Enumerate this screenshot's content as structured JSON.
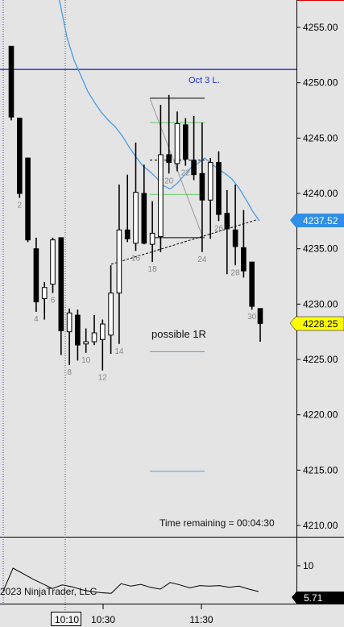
{
  "colors": {
    "background": "#e4e4e4",
    "up_candle": "#ffffff",
    "down_candle": "#000000",
    "ma_line": "#4a9be8",
    "oct3_line": "#1f2fd6",
    "price_badge_blue": "#2f8ee8",
    "price_badge_yellow": "#ffff00",
    "target_line": "#4a9be8",
    "green_line": "#66cc66",
    "bar_label": "#888888"
  },
  "annotations": {
    "oct3_label": "Oct 3 L.",
    "possible_label": "possible 1R",
    "time_remaining": "Time remaining = 00:04:30",
    "copyright": "2023 NinjaTrader, LLC",
    "cursor_time": "10:10"
  },
  "badges": {
    "ma_value": "4237.52",
    "last_price": "4228.25",
    "indicator_value": "5.71"
  },
  "indicator": {
    "tick_label": "10",
    "values": [
      5.8,
      9.6,
      8.7,
      7.8,
      7.0,
      6.2,
      6.8,
      6.5,
      6.0,
      5.7,
      5.5,
      5.4,
      7.0,
      6.6,
      6.9,
      6.4,
      6.1,
      7.2,
      6.8,
      6.3,
      6.7,
      6.6,
      6.7,
      6.4,
      6.6,
      6.1,
      5.7
    ]
  },
  "chart_data": {
    "type": "candlestick",
    "title": "",
    "ylim": [
      4208.0,
      4258.0
    ],
    "y_ticks": [
      "4255.00",
      "4250.00",
      "4245.00",
      "4240.00",
      "4235.00",
      "4230.00",
      "4225.00",
      "4220.00",
      "4215.00",
      "4210.00"
    ],
    "x_ticks": [
      "10:30",
      "11:30"
    ],
    "oct3_level": 4251.2,
    "candles": [
      {
        "o": 4253.3,
        "h": 4253.3,
        "l": 4246.6,
        "c": 4246.9,
        "label": ""
      },
      {
        "o": 4246.8,
        "h": 4246.8,
        "l": 4239.6,
        "c": 4240.0,
        "label": "2"
      },
      {
        "o": 4243.2,
        "h": 4243.2,
        "l": 4235.6,
        "c": 4235.8,
        "label": ""
      },
      {
        "o": 4235.0,
        "h": 4236.0,
        "l": 4229.3,
        "c": 4230.2,
        "label": "4"
      },
      {
        "o": 4230.5,
        "h": 4232.0,
        "l": 4228.6,
        "c": 4231.5,
        "label": ""
      },
      {
        "o": 4231.8,
        "h": 4236.0,
        "l": 4231.0,
        "c": 4235.8,
        "label": "6"
      },
      {
        "o": 4236.0,
        "h": 4236.0,
        "l": 4225.4,
        "c": 4227.6,
        "label": ""
      },
      {
        "o": 4227.5,
        "h": 4229.6,
        "l": 4224.5,
        "c": 4229.2,
        "label": "8"
      },
      {
        "o": 4229.0,
        "h": 4229.5,
        "l": 4224.9,
        "c": 4226.3,
        "label": ""
      },
      {
        "o": 4226.4,
        "h": 4227.8,
        "l": 4225.6,
        "c": 4226.6,
        "label": "10"
      },
      {
        "o": 4226.6,
        "h": 4229.0,
        "l": 4226.3,
        "c": 4227.4,
        "label": ""
      },
      {
        "o": 4226.8,
        "h": 4228.6,
        "l": 4224.0,
        "c": 4228.2,
        "label": "12"
      },
      {
        "o": 4227.2,
        "h": 4233.5,
        "l": 4225.5,
        "c": 4231.0,
        "label": ""
      },
      {
        "o": 4231.0,
        "h": 4240.8,
        "l": 4226.4,
        "c": 4236.7,
        "label": "14"
      },
      {
        "o": 4236.7,
        "h": 4241.7,
        "l": 4235.6,
        "c": 4235.9,
        "label": ""
      },
      {
        "o": 4235.5,
        "h": 4244.6,
        "l": 4234.8,
        "c": 4240.1,
        "label": "16"
      },
      {
        "o": 4240.0,
        "h": 4242.6,
        "l": 4235.4,
        "c": 4235.5,
        "label": ""
      },
      {
        "o": 4235.4,
        "h": 4239.3,
        "l": 4233.8,
        "c": 4236.4,
        "label": "18"
      },
      {
        "o": 4236.1,
        "h": 4248.0,
        "l": 4234.7,
        "c": 4243.5,
        "label": ""
      },
      {
        "o": 4243.5,
        "h": 4248.9,
        "l": 4241.8,
        "c": 4242.8,
        "label": "20"
      },
      {
        "o": 4242.7,
        "h": 4247.4,
        "l": 4242.0,
        "c": 4246.3,
        "label": ""
      },
      {
        "o": 4246.2,
        "h": 4246.8,
        "l": 4242.5,
        "c": 4243.1,
        "label": "22"
      },
      {
        "o": 4243.0,
        "h": 4247.0,
        "l": 4241.2,
        "c": 4241.7,
        "label": ""
      },
      {
        "o": 4241.8,
        "h": 4246.4,
        "l": 4234.7,
        "c": 4239.4,
        "label": "24"
      },
      {
        "o": 4239.4,
        "h": 4243.2,
        "l": 4235.9,
        "c": 4242.8,
        "label": ""
      },
      {
        "o": 4242.8,
        "h": 4243.8,
        "l": 4237.5,
        "c": 4238.1,
        "label": "26"
      },
      {
        "o": 4238.2,
        "h": 4240.3,
        "l": 4232.7,
        "c": 4236.8,
        "label": ""
      },
      {
        "o": 4236.7,
        "h": 4240.8,
        "l": 4233.5,
        "c": 4235.2,
        "label": "28"
      },
      {
        "o": 4235.1,
        "h": 4238.5,
        "l": 4232.4,
        "c": 4233.0,
        "label": ""
      },
      {
        "o": 4233.8,
        "h": 4233.8,
        "l": 4229.5,
        "c": 4229.8,
        "label": "30"
      },
      {
        "o": 4229.6,
        "h": 4229.6,
        "l": 4226.6,
        "c": 4228.25,
        "label": ""
      }
    ],
    "ma_series": [
      4262.0,
      4260.0,
      4257.0,
      4254.0,
      4252.0,
      4250.6,
      4249.2,
      4248.2,
      4247.3,
      4246.6,
      4246.0,
      4245.2,
      4244.2,
      4243.3,
      4242.5,
      4242.0,
      4241.4,
      4240.7,
      4240.4,
      4240.9,
      4241.6,
      4242.3,
      4242.7,
      4243.2,
      4242.7,
      4242.2,
      4241.8,
      4241.3,
      4240.5,
      4239.5,
      4238.4,
      4237.52
    ]
  }
}
